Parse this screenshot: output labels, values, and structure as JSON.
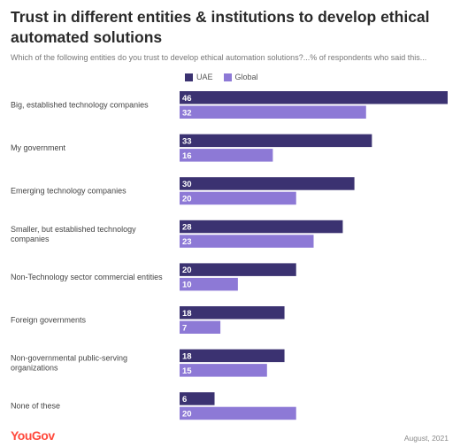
{
  "title": "Trust in different entities & institutions to develop ethical automated solutions",
  "subtitle": "Which of the following entities do you trust to develop ethical automation solutions?...% of respondents who said this...",
  "brand": "YouGov",
  "date": "August, 2021",
  "colors": {
    "uae": "#3b3271",
    "global": "#8d79d6",
    "brand": "#ff4a3d"
  },
  "chart_data": {
    "type": "bar",
    "orientation": "horizontal",
    "categories": [
      [
        "Big, established technology companies"
      ],
      [
        "My government"
      ],
      [
        "Emerging technology companies"
      ],
      [
        "Smaller, but established technology",
        "companies"
      ],
      [
        "Non-Technology sector commercial entities"
      ],
      [
        "Foreign governments"
      ],
      [
        "Non-governmental public-serving",
        "organizations"
      ],
      [
        "None of these"
      ]
    ],
    "series": [
      {
        "name": "UAE",
        "values": [
          46,
          33,
          30,
          28,
          20,
          18,
          18,
          6
        ]
      },
      {
        "name": "Global",
        "values": [
          32,
          16,
          20,
          23,
          10,
          7,
          15,
          20
        ]
      }
    ],
    "xlim": [
      0,
      46
    ],
    "legend": "top-left",
    "grid": false
  }
}
